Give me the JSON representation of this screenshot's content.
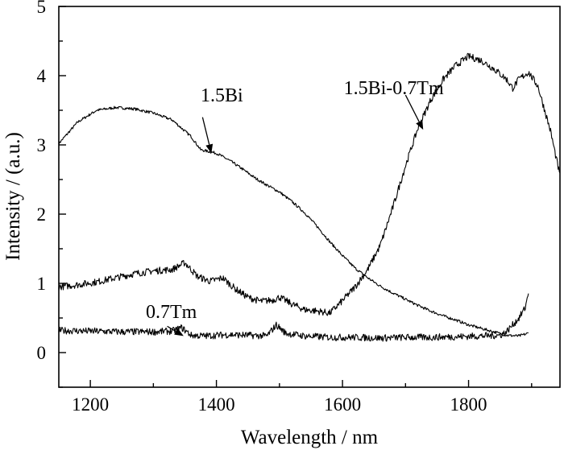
{
  "chart_data": {
    "type": "line",
    "title": "",
    "xlabel": "Wavelength / nm",
    "ylabel": "Intensity / (a.u.)",
    "xlim": [
      1150,
      1945
    ],
    "ylim": [
      -0.5,
      5
    ],
    "xticks": [
      1200,
      1400,
      1600,
      1800
    ],
    "xtick_labels": [
      "1200",
      "1400",
      "1600",
      "1800"
    ],
    "yticks": [
      0,
      1,
      2,
      3,
      4,
      5
    ],
    "ytick_labels": [
      "0",
      "1",
      "2",
      "3",
      "4",
      "5"
    ],
    "grid": false,
    "legend": "none",
    "series": [
      {
        "name": "1.5Bi",
        "noise": 0.02,
        "x": [
          1150,
          1180,
          1210,
          1240,
          1270,
          1300,
          1330,
          1360,
          1375,
          1400,
          1420,
          1440,
          1460,
          1480,
          1500,
          1520,
          1540,
          1560,
          1580,
          1600,
          1620,
          1640,
          1660,
          1680,
          1700,
          1720,
          1740,
          1760,
          1780,
          1800,
          1820,
          1840,
          1860,
          1880,
          1895
        ],
        "y": [
          3.02,
          3.33,
          3.5,
          3.54,
          3.52,
          3.46,
          3.36,
          3.12,
          2.93,
          2.88,
          2.78,
          2.66,
          2.53,
          2.42,
          2.32,
          2.18,
          2.02,
          1.82,
          1.6,
          1.4,
          1.22,
          1.08,
          0.96,
          0.86,
          0.77,
          0.68,
          0.6,
          0.53,
          0.47,
          0.4,
          0.35,
          0.3,
          0.25,
          0.24,
          0.28
        ]
      },
      {
        "name": "1.5Bi-0.7Tm",
        "noise": 0.05,
        "x": [
          1150,
          1180,
          1210,
          1240,
          1270,
          1300,
          1330,
          1350,
          1370,
          1390,
          1410,
          1430,
          1450,
          1470,
          1490,
          1500,
          1520,
          1540,
          1560,
          1580,
          1600,
          1620,
          1640,
          1660,
          1680,
          1700,
          1720,
          1740,
          1760,
          1780,
          1800,
          1820,
          1840,
          1860,
          1870,
          1880,
          1895,
          1910,
          1930,
          1945
        ],
        "y": [
          0.95,
          0.98,
          1.02,
          1.08,
          1.14,
          1.18,
          1.2,
          1.3,
          1.1,
          1.03,
          1.08,
          0.92,
          0.8,
          0.74,
          0.76,
          0.8,
          0.7,
          0.62,
          0.6,
          0.57,
          0.75,
          0.95,
          1.2,
          1.55,
          2.1,
          2.7,
          3.25,
          3.65,
          3.95,
          4.15,
          4.28,
          4.22,
          4.1,
          3.95,
          3.82,
          3.95,
          4.05,
          3.85,
          3.2,
          2.55
        ]
      },
      {
        "name": "0.7Tm",
        "noise": 0.05,
        "x": [
          1150,
          1200,
          1250,
          1300,
          1330,
          1345,
          1360,
          1380,
          1400,
          1420,
          1450,
          1480,
          1495,
          1510,
          1540,
          1580,
          1620,
          1660,
          1700,
          1740,
          1780,
          1820,
          1850,
          1860,
          1870,
          1880,
          1890,
          1895
        ],
        "y": [
          0.32,
          0.31,
          0.3,
          0.3,
          0.31,
          0.36,
          0.25,
          0.24,
          0.25,
          0.26,
          0.25,
          0.24,
          0.4,
          0.28,
          0.24,
          0.22,
          0.22,
          0.21,
          0.22,
          0.22,
          0.23,
          0.24,
          0.25,
          0.3,
          0.4,
          0.5,
          0.65,
          0.88
        ]
      }
    ],
    "annotations": [
      {
        "text": "1.5Bi",
        "label_x": 1375,
        "label_y": 3.63,
        "arrow_from": [
          1378,
          3.4
        ],
        "arrow_to": [
          1392,
          2.88
        ]
      },
      {
        "text": "1.5Bi-0.7Tm",
        "label_x": 1602,
        "label_y": 3.73,
        "arrow_from": [
          1700,
          3.72
        ],
        "arrow_to": [
          1728,
          3.22
        ]
      },
      {
        "text": "0.7Tm",
        "label_x": 1288,
        "label_y": 0.5,
        "arrow_from": [
          1322,
          0.38
        ],
        "arrow_to": [
          1348,
          0.24
        ]
      }
    ]
  }
}
